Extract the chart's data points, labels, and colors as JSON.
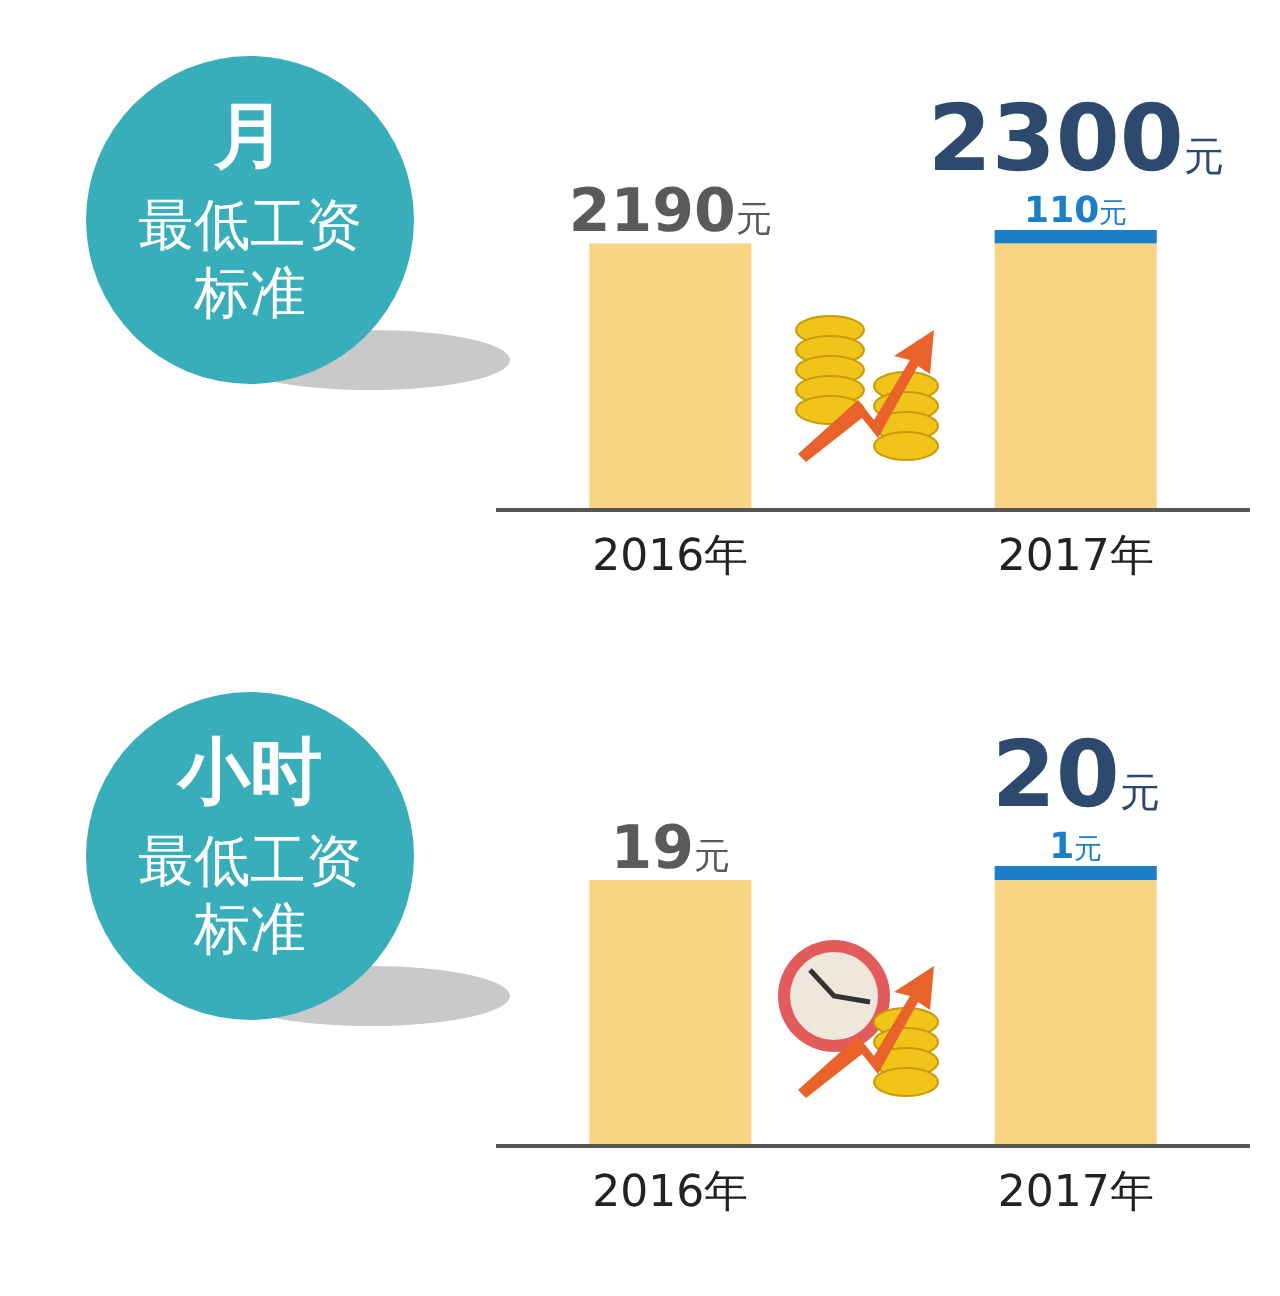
{
  "chart_data": [
    {
      "type": "bar",
      "title": "月",
      "subtitle": "最低工资标准",
      "categories": [
        "2016年",
        "2017年"
      ],
      "stacked": true,
      "series": [
        {
          "color": "#f8d584",
          "values": [
            2190,
            2190
          ],
          "value_labels": [
            "2190元",
            null
          ]
        },
        {
          "color": "#1a7fc6",
          "values": [
            null,
            110
          ],
          "value_labels": [
            null,
            "110元"
          ]
        }
      ],
      "totals": [
        null,
        "2300元"
      ]
    },
    {
      "type": "bar",
      "title": "小时",
      "subtitle": "最低工资标准",
      "categories": [
        "2016年",
        "2017年"
      ],
      "stacked": true,
      "series": [
        {
          "color": "#f8d584",
          "values": [
            19,
            19
          ],
          "value_labels": [
            "19元",
            null
          ]
        },
        {
          "color": "#1a7fc6",
          "values": [
            null,
            1
          ],
          "value_labels": [
            null,
            "1元"
          ]
        }
      ],
      "totals": [
        null,
        "20元"
      ]
    }
  ]
}
